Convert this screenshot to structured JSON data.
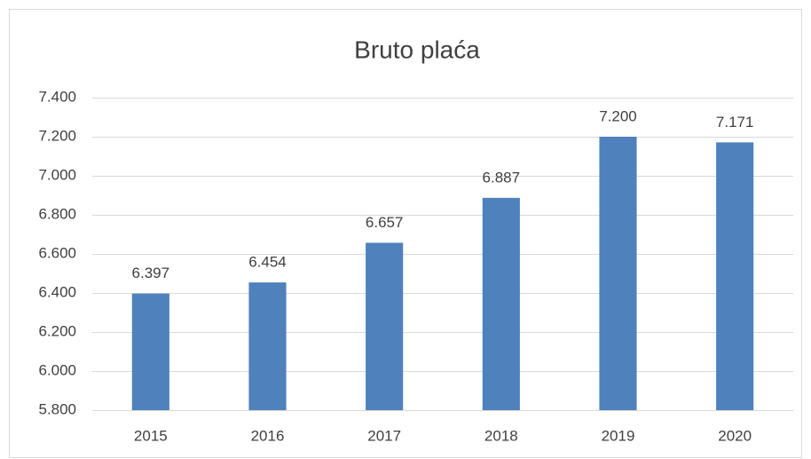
{
  "chart_data": {
    "type": "bar",
    "title": "Bruto plaća",
    "categories": [
      "2015",
      "2016",
      "2017",
      "2018",
      "2019",
      "2020"
    ],
    "values": [
      6397,
      6454,
      6657,
      6887,
      7200,
      7171
    ],
    "value_labels": [
      "6.397",
      "6.454",
      "6.657",
      "6.887",
      "7.200",
      "7.171"
    ],
    "color": "#4f81bd",
    "ylim": [
      5800,
      7400
    ],
    "yticks": [
      {
        "value": 5800,
        "label": "5.800"
      },
      {
        "value": 6000,
        "label": "6.000"
      },
      {
        "value": 6200,
        "label": "6.200"
      },
      {
        "value": 6400,
        "label": "6.400"
      },
      {
        "value": 6600,
        "label": "6.600"
      },
      {
        "value": 6800,
        "label": "6.800"
      },
      {
        "value": 7000,
        "label": "7.000"
      },
      {
        "value": 7200,
        "label": "7.200"
      },
      {
        "value": 7400,
        "label": "7.400"
      }
    ],
    "grid": true
  }
}
